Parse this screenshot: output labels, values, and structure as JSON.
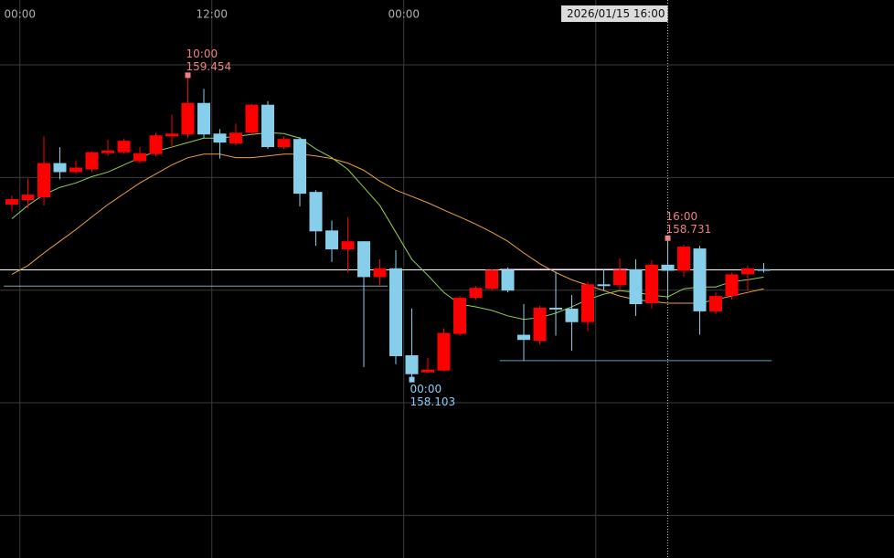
{
  "chart_data": {
    "type": "candlestick",
    "categories": [
      null,
      "00:00",
      null,
      null,
      null,
      null,
      null,
      null,
      null,
      null,
      null,
      null,
      null,
      "12:00",
      null,
      null,
      null,
      null,
      null,
      null,
      null,
      null,
      null,
      null,
      null,
      "00:00",
      null,
      null,
      null,
      null,
      null,
      null,
      null,
      null,
      null,
      null,
      null,
      null,
      null,
      null,
      null,
      null,
      null,
      null,
      null,
      null,
      null,
      null
    ],
    "open": [
      158.88,
      158.9,
      158.912,
      159.064,
      159.024,
      159.036,
      159.108,
      159.112,
      159.072,
      159.104,
      159.183,
      159.191,
      159.331,
      159.195,
      159.151,
      159.199,
      159.323,
      159.135,
      159.171,
      158.936,
      158.765,
      158.681,
      158.717,
      158.558,
      158.597,
      158.211,
      158.135,
      158.143,
      158.306,
      158.466,
      158.506,
      158.59,
      158.302,
      158.275,
      158.422,
      158.418,
      158.358,
      158.526,
      158.522,
      158.593,
      158.442,
      158.613,
      158.586,
      158.685,
      158.406,
      158.474,
      158.57,
      158.593
    ],
    "high": [
      158.92,
      158.996,
      159.183,
      159.135,
      159.076,
      159.116,
      159.167,
      159.171,
      159.135,
      159.199,
      159.279,
      159.454,
      159.394,
      159.215,
      159.239,
      159.327,
      159.339,
      159.183,
      159.179,
      158.944,
      158.809,
      158.825,
      158.717,
      158.637,
      158.677,
      158.418,
      158.199,
      158.33,
      158.474,
      158.518,
      158.593,
      158.601,
      158.438,
      158.43,
      158.582,
      158.478,
      158.538,
      158.593,
      158.641,
      158.637,
      158.633,
      158.731,
      158.701,
      158.697,
      158.49,
      158.578,
      158.609,
      158.621
    ],
    "low": [
      158.849,
      158.864,
      158.876,
      158.992,
      159.016,
      159.024,
      159.096,
      159.108,
      159.064,
      159.096,
      159.135,
      159.175,
      159.175,
      159.084,
      159.143,
      159.191,
      159.127,
      159.127,
      158.872,
      158.697,
      158.625,
      158.578,
      158.159,
      158.522,
      158.171,
      158.103,
      158.131,
      158.139,
      158.298,
      158.458,
      158.498,
      158.49,
      158.187,
      158.259,
      158.298,
      158.231,
      158.318,
      158.498,
      158.498,
      158.386,
      158.418,
      158.458,
      158.558,
      158.302,
      158.394,
      158.458,
      158.498,
      158.578
    ],
    "close": [
      158.904,
      158.924,
      159.064,
      159.024,
      159.044,
      159.112,
      159.12,
      159.163,
      159.108,
      159.187,
      159.195,
      159.331,
      159.191,
      159.155,
      159.199,
      159.323,
      159.135,
      159.171,
      158.928,
      158.761,
      158.681,
      158.717,
      158.558,
      158.597,
      158.207,
      158.127,
      158.147,
      158.31,
      158.466,
      158.51,
      158.59,
      158.498,
      158.279,
      158.422,
      158.414,
      158.358,
      158.526,
      158.518,
      158.59,
      158.438,
      158.613,
      158.586,
      158.693,
      158.406,
      158.474,
      158.57,
      158.597,
      158.586
    ],
    "up_color": "#ff0000",
    "down_color": "#87ceeb",
    "indicators": [
      {
        "color": "#8fd14f",
        "values": [
          158.817,
          158.876,
          158.924,
          158.956,
          158.976,
          159.004,
          159.024,
          159.056,
          159.088,
          159.116,
          159.135,
          159.155,
          159.175,
          159.175,
          159.183,
          159.191,
          159.199,
          159.195,
          159.175,
          159.127,
          159.088,
          159.036,
          158.956,
          158.876,
          158.757,
          158.637,
          158.566,
          158.49,
          158.438,
          158.426,
          158.41,
          158.386,
          158.37,
          158.378,
          158.398,
          158.426,
          158.458,
          158.482,
          158.498,
          158.49,
          158.478,
          158.47,
          158.506,
          158.514,
          158.514,
          158.538,
          158.546,
          158.558
        ]
      },
      {
        "color": "#f0a040",
        "values": [
          158.57,
          158.609,
          158.665,
          158.717,
          158.769,
          158.825,
          158.88,
          158.928,
          158.976,
          159.016,
          159.056,
          159.088,
          159.104,
          159.104,
          159.088,
          159.088,
          159.096,
          159.104,
          159.104,
          159.096,
          159.084,
          159.064,
          159.032,
          158.984,
          158.944,
          158.916,
          158.888,
          158.856,
          158.825,
          158.793,
          158.757,
          158.717,
          158.665,
          158.617,
          158.578,
          158.546,
          158.522,
          158.498,
          158.474,
          158.458,
          158.45,
          158.442,
          158.442,
          158.442,
          158.458,
          158.474,
          158.49,
          158.506
        ]
      }
    ],
    "levels": [
      {
        "value": 158.518,
        "color": "#7fa8b0",
        "start": 0,
        "end": 23
      },
      {
        "value": 158.593,
        "color": "#d090c0",
        "start": 31,
        "end": 38
      },
      {
        "value": 158.187,
        "color": "#5fa0b0",
        "start": 31,
        "end": 47
      },
      {
        "value": 158.59,
        "color": "#ffffff"
      }
    ],
    "annotations": [
      {
        "time": "10:00",
        "value": 159.454,
        "at": "high",
        "color": "#f08080"
      },
      {
        "time": "16:00",
        "value": 158.731,
        "at": "high",
        "color": "#f08080"
      },
      {
        "time": "00:00",
        "value": 158.103,
        "at": "low",
        "color": "#87cefa"
      }
    ],
    "crosshair": {
      "label": "2026/01/15 16:00"
    },
    "ylim": [
      157.311,
      159.788
    ],
    "yticks": [
      157.5,
      158,
      158.5,
      159,
      159.5
    ],
    "xgrid_every": 12,
    "grid": true
  }
}
